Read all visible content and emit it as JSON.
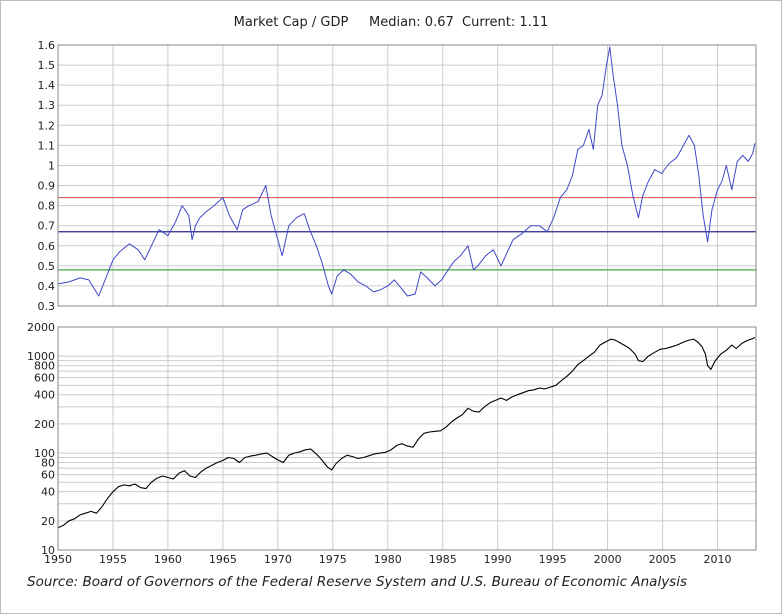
{
  "title": "Market Cap / GDP",
  "median_label": "Median: 0.67",
  "current_label": "Current: 1.11",
  "source": "Source: Board of Governors of the Federal Reserve System and U.S. Bureau of Economic Analysis",
  "colors": {
    "ratio_line": "#3f48c8",
    "index_line": "#000000",
    "upper_band": "#e06060",
    "median_line": "#2a2a8a",
    "lower_band": "#44a844",
    "grid": "#cccccc",
    "frame": "#bdbdbd"
  },
  "chart_data": [
    {
      "type": "line",
      "title": "Market Cap / GDP",
      "median": 0.67,
      "current": 1.11,
      "xlim": [
        1950,
        2013.5
      ],
      "ylim": [
        0.3,
        1.6
      ],
      "y_ticks": [
        "0.3",
        "0.4",
        "0.5",
        "0.6",
        "0.7",
        "0.8",
        "0.9",
        "1",
        "1.1",
        "1.2",
        "1.3",
        "1.4",
        "1.5",
        "1.6"
      ],
      "grid": true,
      "reference_lines": [
        {
          "name": "upper",
          "value": 0.84,
          "color": "#e06060"
        },
        {
          "name": "median",
          "value": 0.67,
          "color": "#2a2a8a"
        },
        {
          "name": "lower",
          "value": 0.48,
          "color": "#44a844"
        }
      ],
      "series": [
        {
          "x": [
            1950.0,
            1951.0,
            1952.0,
            1952.8,
            1953.7,
            1954.5,
            1955.0,
            1955.6,
            1956.5,
            1957.3,
            1957.9,
            1958.5,
            1959.2,
            1960.0,
            1960.7,
            1961.3,
            1961.9,
            1962.2,
            1962.5,
            1962.9,
            1963.5,
            1964.2,
            1965.0,
            1965.6,
            1966.3,
            1966.8,
            1967.4,
            1968.2,
            1968.9,
            1969.4,
            1969.9,
            1970.4,
            1971.0,
            1971.7,
            1972.4,
            1972.9,
            1973.5,
            1974.0,
            1974.6,
            1974.9,
            1975.4,
            1976.0,
            1976.6,
            1977.3,
            1978.0,
            1978.7,
            1979.3,
            1980.0,
            1980.6,
            1981.2,
            1981.8,
            1982.5,
            1983.0,
            1983.6,
            1984.3,
            1984.9,
            1985.5,
            1986.0,
            1986.6,
            1987.3,
            1987.8,
            1988.2,
            1988.9,
            1989.6,
            1990.3,
            1990.8,
            1991.4,
            1992.2,
            1993.0,
            1993.8,
            1994.5,
            1995.1,
            1995.7,
            1996.3,
            1996.8,
            1997.3,
            1997.8,
            1998.3,
            1998.7,
            1999.1,
            1999.5,
            1999.9,
            2000.2,
            2000.5,
            2000.9,
            2001.3,
            2001.8,
            2002.3,
            2002.8,
            2003.2,
            2003.7,
            2004.3,
            2004.9,
            2005.6,
            2006.3,
            2006.9,
            2007.4,
            2007.9,
            2008.3,
            2008.7,
            2009.1,
            2009.5,
            2010.0,
            2010.4,
            2010.8,
            2011.3,
            2011.8,
            2012.3,
            2012.8,
            2013.2,
            2013.4
          ],
          "y": [
            0.41,
            0.42,
            0.44,
            0.43,
            0.35,
            0.46,
            0.53,
            0.57,
            0.61,
            0.58,
            0.53,
            0.6,
            0.68,
            0.65,
            0.72,
            0.8,
            0.75,
            0.63,
            0.7,
            0.74,
            0.77,
            0.8,
            0.84,
            0.75,
            0.68,
            0.78,
            0.8,
            0.82,
            0.9,
            0.75,
            0.65,
            0.55,
            0.7,
            0.74,
            0.76,
            0.68,
            0.6,
            0.52,
            0.4,
            0.36,
            0.45,
            0.48,
            0.46,
            0.42,
            0.4,
            0.37,
            0.38,
            0.4,
            0.43,
            0.39,
            0.35,
            0.36,
            0.47,
            0.44,
            0.4,
            0.43,
            0.48,
            0.52,
            0.55,
            0.6,
            0.48,
            0.5,
            0.55,
            0.58,
            0.5,
            0.56,
            0.63,
            0.66,
            0.7,
            0.7,
            0.67,
            0.74,
            0.84,
            0.88,
            0.95,
            1.08,
            1.1,
            1.18,
            1.08,
            1.3,
            1.35,
            1.5,
            1.59,
            1.45,
            1.3,
            1.1,
            1.0,
            0.85,
            0.74,
            0.85,
            0.92,
            0.98,
            0.96,
            1.01,
            1.04,
            1.1,
            1.15,
            1.1,
            0.95,
            0.75,
            0.62,
            0.78,
            0.88,
            0.92,
            1.0,
            0.88,
            1.02,
            1.05,
            1.02,
            1.06,
            1.11
          ]
        }
      ]
    },
    {
      "type": "line",
      "scale": "log",
      "xlim": [
        1950,
        2013.5
      ],
      "ylim": [
        10,
        2000
      ],
      "x_ticks": [
        "1950",
        "1955",
        "1960",
        "1965",
        "1970",
        "1975",
        "1980",
        "1985",
        "1990",
        "1995",
        "2000",
        "2005",
        "2010"
      ],
      "y_tick_labels": [
        "10",
        "20",
        "40",
        "60",
        "80",
        "100",
        "200",
        "400",
        "600",
        "800",
        "1000",
        "2000"
      ],
      "y_tick_values": [
        10,
        20,
        40,
        60,
        80,
        100,
        200,
        400,
        600,
        800,
        1000,
        2000
      ],
      "y_minor_grid": [
        30,
        50,
        70,
        90,
        300,
        500,
        700,
        900
      ],
      "grid": true,
      "series": [
        {
          "x": [
            1950.0,
            1950.5,
            1951.0,
            1951.5,
            1952.0,
            1952.5,
            1953.0,
            1953.5,
            1954.0,
            1954.5,
            1955.0,
            1955.5,
            1956.0,
            1956.5,
            1957.0,
            1957.5,
            1958.0,
            1958.5,
            1959.0,
            1959.5,
            1960.0,
            1960.5,
            1961.0,
            1961.5,
            1962.0,
            1962.5,
            1963.0,
            1963.5,
            1964.0,
            1964.5,
            1965.0,
            1965.5,
            1966.0,
            1966.5,
            1967.0,
            1967.5,
            1968.0,
            1968.5,
            1969.0,
            1969.5,
            1970.0,
            1970.5,
            1971.0,
            1971.5,
            1972.0,
            1972.5,
            1973.0,
            1973.5,
            1974.0,
            1974.5,
            1974.9,
            1975.3,
            1975.8,
            1976.3,
            1976.8,
            1977.3,
            1977.8,
            1978.3,
            1978.8,
            1979.3,
            1979.8,
            1980.3,
            1980.8,
            1981.3,
            1981.8,
            1982.3,
            1982.8,
            1983.3,
            1983.8,
            1984.3,
            1984.8,
            1985.3,
            1985.8,
            1986.3,
            1986.8,
            1987.3,
            1987.8,
            1988.3,
            1988.8,
            1989.3,
            1989.8,
            1990.3,
            1990.8,
            1991.3,
            1991.8,
            1992.3,
            1992.8,
            1993.3,
            1993.8,
            1994.3,
            1994.8,
            1995.3,
            1995.8,
            1996.3,
            1996.8,
            1997.3,
            1997.8,
            1998.3,
            1998.8,
            1999.3,
            1999.8,
            2000.3,
            2000.7,
            2001.1,
            2001.5,
            2002.0,
            2002.5,
            2002.8,
            2003.2,
            2003.7,
            2004.3,
            2004.8,
            2005.3,
            2005.8,
            2006.3,
            2006.8,
            2007.3,
            2007.8,
            2008.2,
            2008.6,
            2008.9,
            2009.1,
            2009.4,
            2009.8,
            2010.3,
            2010.8,
            2011.3,
            2011.7,
            2012.2,
            2012.7,
            2013.2,
            2013.4
          ],
          "y": [
            17,
            18,
            20,
            21,
            23,
            24,
            25,
            24,
            28,
            34,
            40,
            45,
            47,
            46,
            48,
            44,
            43,
            50,
            55,
            58,
            56,
            54,
            62,
            66,
            58,
            56,
            64,
            70,
            75,
            80,
            84,
            90,
            88,
            80,
            90,
            93,
            95,
            98,
            100,
            92,
            85,
            80,
            95,
            100,
            103,
            108,
            110,
            98,
            85,
            72,
            67,
            78,
            88,
            95,
            92,
            88,
            90,
            94,
            98,
            100,
            102,
            108,
            120,
            125,
            118,
            115,
            140,
            160,
            165,
            168,
            170,
            185,
            210,
            230,
            250,
            290,
            270,
            265,
            300,
            330,
            350,
            370,
            350,
            380,
            400,
            420,
            440,
            450,
            470,
            460,
            480,
            500,
            560,
            620,
            700,
            820,
            900,
            1000,
            1100,
            1300,
            1400,
            1500,
            1460,
            1380,
            1300,
            1200,
            1050,
            900,
            880,
            1000,
            1100,
            1180,
            1200,
            1250,
            1300,
            1380,
            1450,
            1500,
            1400,
            1250,
            1050,
            800,
            730,
            900,
            1050,
            1150,
            1300,
            1200,
            1350,
            1450,
            1520,
            1560
          ]
        }
      ]
    }
  ]
}
